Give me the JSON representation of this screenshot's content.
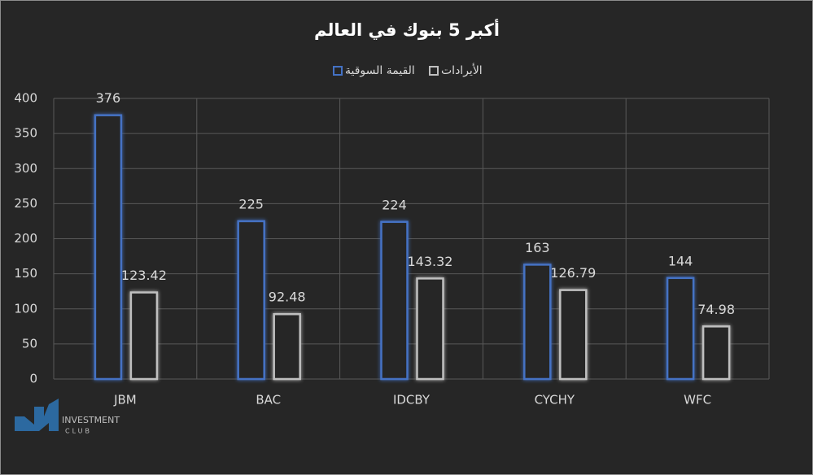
{
  "chart_data": {
    "type": "bar",
    "title": "أكبر 5 بنوك في العالم",
    "categories": [
      "JBM",
      "BAC",
      "IDCBY",
      "CYCHY",
      "WFC"
    ],
    "series": [
      {
        "name": "القيمة السوقية",
        "color": "#4472c4",
        "values": [
          376,
          225,
          224,
          163,
          144
        ]
      },
      {
        "name": "الأيرادات",
        "color": "#bfbfbf",
        "values": [
          123.42,
          92.48,
          143.32,
          126.79,
          74.98
        ]
      }
    ],
    "ylim": [
      0,
      400
    ],
    "yticks": [
      0,
      50,
      100,
      150,
      200,
      250,
      300,
      350,
      400
    ],
    "grid": true,
    "legend": "top"
  },
  "logo": {
    "line1": "INVESTMENT",
    "line2": "CLUB"
  }
}
